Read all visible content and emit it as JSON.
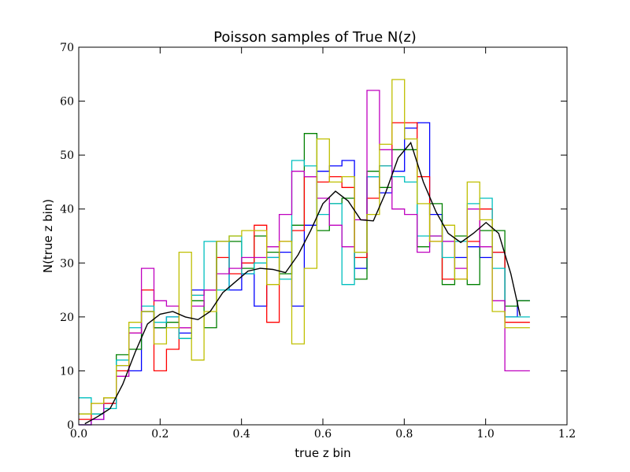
{
  "chart_data": {
    "type": "line",
    "title": "Poisson samples of True N(z)",
    "xlabel": "true z bin",
    "ylabel": "N(true z bin)",
    "xlim": [
      0.0,
      1.2
    ],
    "ylim": [
      0,
      70
    ],
    "x_ticks": [
      "0.0",
      "0.2",
      "0.4",
      "0.6",
      "0.8",
      "1.0",
      "1.2"
    ],
    "y_ticks": [
      "0",
      "10",
      "20",
      "30",
      "40",
      "50",
      "60",
      "70"
    ],
    "grid": false,
    "legend": "none",
    "bin_edges": [
      0.0,
      0.0308,
      0.0616,
      0.0924,
      0.1232,
      0.154,
      0.1848,
      0.2156,
      0.2464,
      0.2772,
      0.308,
      0.3388,
      0.3696,
      0.4004,
      0.4312,
      0.462,
      0.4928,
      0.5236,
      0.5544,
      0.5852,
      0.616,
      0.6468,
      0.6776,
      0.7084,
      0.7392,
      0.77,
      0.8008,
      0.8316,
      0.8624,
      0.8932,
      0.924,
      0.9548,
      0.9856,
      1.0164,
      1.0472,
      1.078
    ],
    "samples": [
      {
        "color": "#0000ff",
        "values": [
          0,
          1,
          4,
          11,
          10,
          21,
          18,
          20,
          17,
          25,
          25,
          34,
          25,
          28,
          22,
          31,
          32,
          22,
          37,
          47,
          48,
          49,
          29,
          46,
          43,
          47,
          55,
          56,
          39,
          34,
          31,
          33,
          31,
          32,
          20,
          23
        ]
      },
      {
        "color": "#008000",
        "values": [
          2,
          2,
          5,
          13,
          14,
          21,
          18,
          19,
          16,
          23,
          18,
          34,
          34,
          29,
          35,
          32,
          28,
          37,
          54,
          36,
          41,
          42,
          27,
          47,
          44,
          51,
          51,
          33,
          41,
          26,
          35,
          26,
          36,
          36,
          22,
          23
        ]
      },
      {
        "color": "#ff0000",
        "values": [
          1,
          4,
          4,
          10,
          17,
          25,
          10,
          14,
          18,
          24,
          25,
          31,
          28,
          30,
          37,
          19,
          34,
          36,
          46,
          45,
          46,
          44,
          31,
          42,
          48,
          56,
          56,
          46,
          34,
          27,
          27,
          34,
          40,
          32,
          19,
          19
        ]
      },
      {
        "color": "#00bfbf",
        "values": [
          5,
          2,
          3,
          12,
          18,
          22,
          19,
          20,
          16,
          24,
          34,
          25,
          35,
          28,
          30,
          31,
          27,
          49,
          48,
          39,
          41,
          26,
          32,
          46,
          48,
          46,
          45,
          35,
          35,
          31,
          34,
          41,
          42,
          29,
          20,
          20
        ]
      },
      {
        "color": "#bf00bf",
        "values": [
          0,
          1,
          5,
          9,
          17,
          29,
          23,
          22,
          18,
          22,
          25,
          28,
          29,
          31,
          31,
          33,
          39,
          47,
          46,
          42,
          37,
          33,
          38,
          62,
          51,
          40,
          39,
          32,
          35,
          34,
          29,
          40,
          33,
          23,
          10,
          10
        ]
      },
      {
        "color": "#bfbf00",
        "values": [
          2,
          4,
          5,
          11,
          19,
          21,
          15,
          18,
          32,
          12,
          21,
          34,
          35,
          36,
          36,
          26,
          34,
          15,
          29,
          53,
          45,
          46,
          32,
          39,
          52,
          64,
          53,
          41,
          34,
          37,
          27,
          45,
          38,
          21,
          18,
          18
        ]
      }
    ],
    "mean": {
      "color": "#000000",
      "x": [
        0.015,
        0.046,
        0.077,
        0.108,
        0.139,
        0.169,
        0.2,
        0.231,
        0.262,
        0.293,
        0.323,
        0.354,
        0.385,
        0.416,
        0.446,
        0.477,
        0.508,
        0.539,
        0.57,
        0.6,
        0.631,
        0.662,
        0.693,
        0.724,
        0.754,
        0.785,
        0.816,
        0.847,
        0.878,
        0.908,
        0.939,
        0.97,
        1.001,
        1.032,
        1.062,
        1.085
      ],
      "values": [
        0.2,
        1.5,
        3.0,
        7.5,
        13.5,
        18.7,
        20.5,
        21.0,
        20.0,
        19.5,
        21.0,
        24.5,
        26.5,
        28.5,
        29.0,
        28.8,
        28.2,
        31.5,
        36.0,
        41.0,
        43.3,
        41.5,
        38.0,
        37.8,
        43.0,
        49.5,
        52.3,
        45.0,
        39.5,
        35.5,
        33.8,
        35.5,
        37.5,
        35.5,
        28.0,
        20.2
      ]
    }
  }
}
